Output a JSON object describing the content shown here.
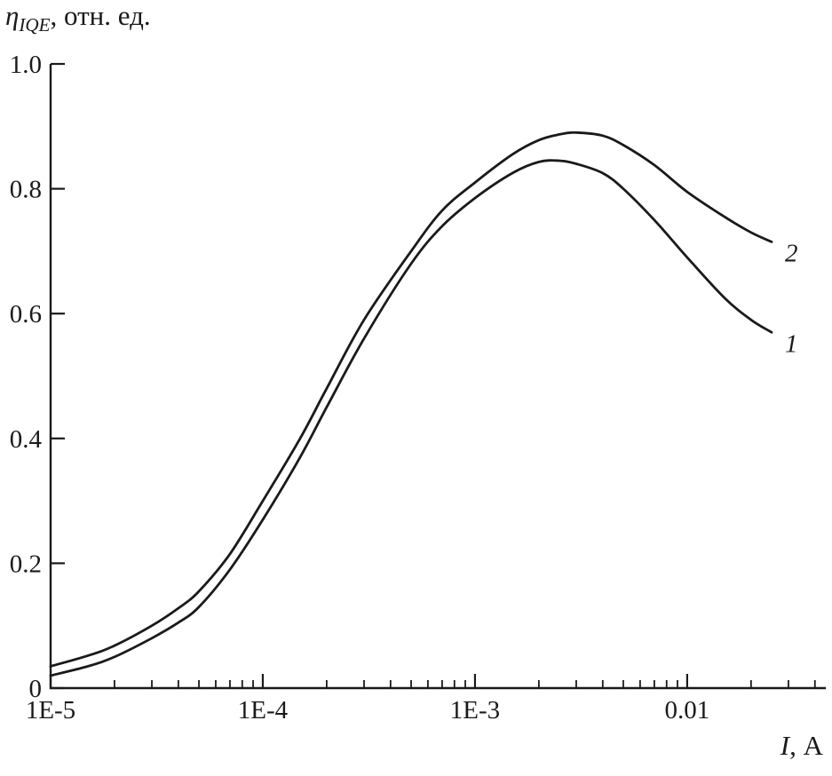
{
  "page": {
    "background": "#ffffff"
  },
  "chart_data": {
    "type": "line",
    "title": "",
    "x_scale": "log",
    "xlim": [
      1e-05,
      0.045
    ],
    "ylim": [
      0,
      1.0
    ],
    "ylabel": {
      "symbol": "η",
      "subscript": "IQE",
      "suffix": ", отн. ед."
    },
    "xlabel": {
      "symbol": "I",
      "suffix": ", А"
    },
    "x_ticks": [
      {
        "value": 1e-05,
        "label": "1E-5"
      },
      {
        "value": 0.0001,
        "label": "1E-4"
      },
      {
        "value": 0.001,
        "label": "1E-3"
      },
      {
        "value": 0.01,
        "label": "0.01"
      }
    ],
    "y_ticks": [
      {
        "value": 0,
        "label": "0"
      },
      {
        "value": 0.2,
        "label": "0.2"
      },
      {
        "value": 0.4,
        "label": "0.4"
      },
      {
        "value": 0.6,
        "label": "0.6"
      },
      {
        "value": 0.8,
        "label": "0.8"
      },
      {
        "value": 1.0,
        "label": "1.0"
      }
    ],
    "grid": false,
    "legend_position": "curve-end-labels",
    "line_color": "#1a1a1a",
    "axis_color": "#1a1a1a",
    "series": [
      {
        "name": "1",
        "label": "1",
        "x": [
          1e-05,
          1.5e-05,
          2e-05,
          3e-05,
          4e-05,
          5e-05,
          7e-05,
          0.0001,
          0.00015,
          0.0002,
          0.0003,
          0.0005,
          0.0007,
          0.001,
          0.0015,
          0.002,
          0.0025,
          0.003,
          0.004,
          0.005,
          0.007,
          0.01,
          0.015,
          0.02,
          0.025
        ],
        "y": [
          0.02,
          0.035,
          0.05,
          0.08,
          0.105,
          0.13,
          0.19,
          0.27,
          0.37,
          0.45,
          0.56,
          0.68,
          0.74,
          0.785,
          0.825,
          0.843,
          0.845,
          0.84,
          0.825,
          0.8,
          0.75,
          0.69,
          0.625,
          0.59,
          0.57
        ]
      },
      {
        "name": "2",
        "label": "2",
        "x": [
          1e-05,
          1.5e-05,
          2e-05,
          3e-05,
          4e-05,
          5e-05,
          7e-05,
          0.0001,
          0.00015,
          0.0002,
          0.0003,
          0.0005,
          0.0007,
          0.001,
          0.0015,
          0.002,
          0.0025,
          0.003,
          0.004,
          0.005,
          0.007,
          0.01,
          0.015,
          0.02,
          0.025
        ],
        "y": [
          0.035,
          0.052,
          0.068,
          0.1,
          0.128,
          0.155,
          0.215,
          0.3,
          0.4,
          0.48,
          0.59,
          0.7,
          0.765,
          0.81,
          0.855,
          0.878,
          0.887,
          0.89,
          0.885,
          0.87,
          0.838,
          0.795,
          0.755,
          0.73,
          0.715
        ]
      }
    ]
  }
}
